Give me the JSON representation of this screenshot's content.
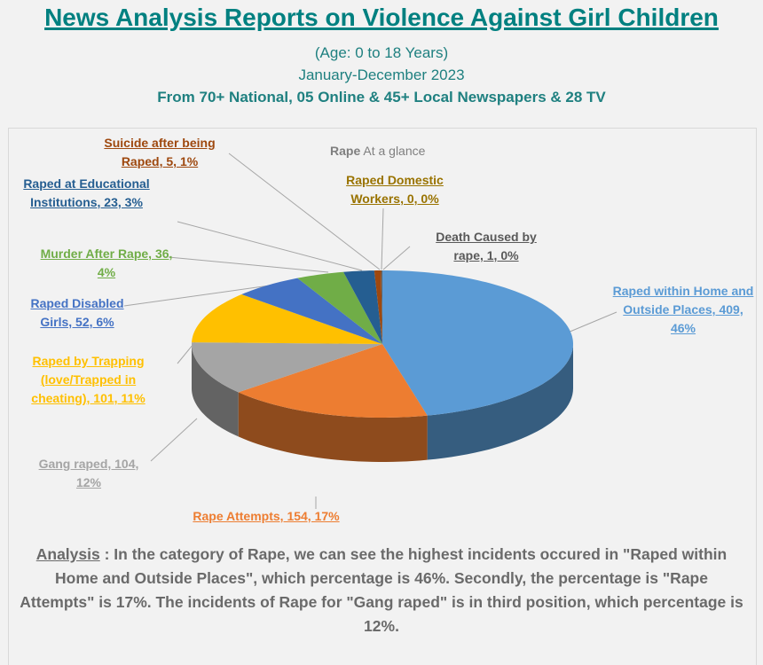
{
  "header": {
    "title": "News Analysis Reports on Violence Against Girl Children",
    "age": "(Age: 0 to 18 Years)",
    "period": "January-December 2023",
    "sources": "From 70+ National, 05 Online & 45+ Local Newspapers & 28 TV"
  },
  "chart_data": {
    "type": "pie",
    "style": "3d",
    "title_bold": "Rape",
    "title_rest": "At a glance",
    "slices": [
      {
        "name": "Raped within Home and Outside Places",
        "value": 409,
        "percent": "46%",
        "label": "Raped within Home and Outside Places, 409, 46%",
        "color": "#5B9BD5"
      },
      {
        "name": "Rape Attempts",
        "value": 154,
        "percent": "17%",
        "label": "Rape Attempts, 154, 17%",
        "color": "#ED7D31"
      },
      {
        "name": "Gang raped",
        "value": 104,
        "percent": "12%",
        "label": "Gang raped, 104, 12%",
        "color": "#A5A5A5"
      },
      {
        "name": "Raped by Trapping (love/Trapped in cheating)",
        "value": 101,
        "percent": "11%",
        "label": "Raped by Trapping (love/Trapped in cheating), 101, 11%",
        "color": "#FFC000"
      },
      {
        "name": "Raped Disabled Girls",
        "value": 52,
        "percent": "6%",
        "label": "Raped Disabled Girls, 52, 6%",
        "color": "#4472C4"
      },
      {
        "name": "Murder After Rape",
        "value": 36,
        "percent": "4%",
        "label": "Murder After Rape, 36, 4%",
        "color": "#70AD47"
      },
      {
        "name": "Raped at Educational Institutions",
        "value": 23,
        "percent": "3%",
        "label": "Raped at Educational Institutions, 23, 3%",
        "color": "#255E91"
      },
      {
        "name": "Suicide after being Raped",
        "value": 5,
        "percent": "1%",
        "label": "Suicide after being Raped, 5, 1%",
        "color": "#9E480E"
      },
      {
        "name": "Raped Domestic Workers",
        "value": 0,
        "percent": "0%",
        "label": "Raped Domestic Workers, 0, 0%",
        "color": "#997300"
      },
      {
        "name": "Death Caused by rape",
        "value": 1,
        "percent": "0%",
        "label": "Death Caused by rape, 1, 0%",
        "color": "#636363"
      }
    ]
  },
  "analysis": {
    "heading": "Analysis",
    "text": " : In the category of Rape, we can see the highest incidents occured in \"Raped within Home and Outside Places\", which percentage is 46%. Secondly, the percentage is \"Rape Attempts\" is 17%. The incidents of Rape for \"Gang raped\" is in third position, which percentage is 12%."
  }
}
